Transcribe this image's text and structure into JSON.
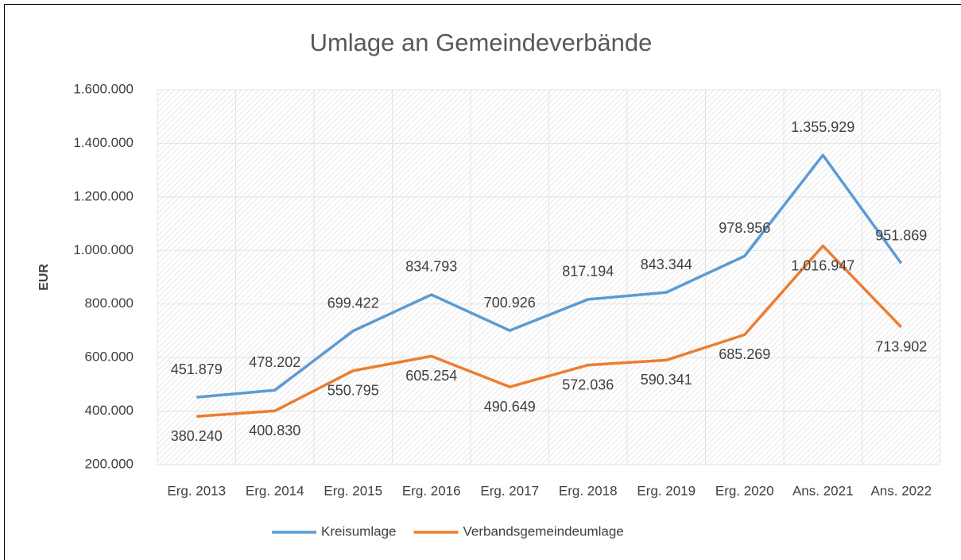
{
  "chart_data": {
    "type": "line",
    "title": "Umlage an Gemeindeverbände",
    "ylabel": "EUR",
    "categories": [
      "Erg. 2013",
      "Erg. 2014",
      "Erg. 2015",
      "Erg. 2016",
      "Erg. 2017",
      "Erg. 2018",
      "Erg. 2019",
      "Erg. 2020",
      "Ans. 2021",
      "Ans. 2022"
    ],
    "series": [
      {
        "name": "Kreisumlage",
        "color": "#5b9bd5",
        "values": [
          451879,
          478202,
          699422,
          834793,
          700926,
          817194,
          843344,
          978956,
          1355929,
          951869
        ],
        "value_labels": [
          "451.879",
          "478.202",
          "699.422",
          "834.793",
          "700.926",
          "817.194",
          "843.344",
          "978.956",
          "1.355.929",
          "951.869"
        ]
      },
      {
        "name": "Verbandsgemeindeumlage",
        "color": "#ed7d31",
        "values": [
          380240,
          400830,
          550795,
          605254,
          490649,
          572036,
          590341,
          685269,
          1016947,
          713902
        ],
        "value_labels": [
          "380.240",
          "400.830",
          "550.795",
          "605.254",
          "490.649",
          "572.036",
          "590.341",
          "685.269",
          "1.016.947",
          "713.902"
        ]
      }
    ],
    "ylim": [
      200000,
      1600000
    ],
    "yticks": [
      {
        "value": 200000,
        "label": "200.000"
      },
      {
        "value": 400000,
        "label": "400.000"
      },
      {
        "value": 600000,
        "label": "600.000"
      },
      {
        "value": 800000,
        "label": "800.000"
      },
      {
        "value": 1000000,
        "label": "1.000.000"
      },
      {
        "value": 1200000,
        "label": "1.200.000"
      },
      {
        "value": 1400000,
        "label": "1.400.000"
      },
      {
        "value": 1600000,
        "label": "1.600.000"
      }
    ],
    "grid": true,
    "legend": "bottom"
  }
}
